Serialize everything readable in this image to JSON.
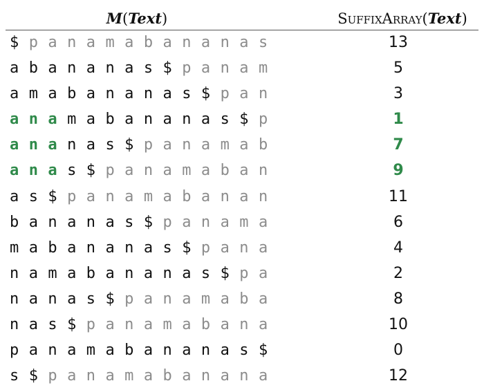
{
  "header": {
    "left_title_italic": "M",
    "left_title_open": "(",
    "left_title_arg": "Text",
    "left_title_close": ")",
    "right_title_name": "SuffixArray",
    "right_title_open": "(",
    "right_title_arg": "Text",
    "right_title_close": ")"
  },
  "colors": {
    "black": "#111111",
    "gray": "#8c8c8c",
    "green": "#2f8a4a"
  },
  "rows": [
    {
      "rotation": "$panamabananas",
      "black_count": 1,
      "green_count": 0,
      "suffix": "13",
      "highlight": false
    },
    {
      "rotation": "abananas$panam",
      "black_count": 9,
      "green_count": 0,
      "suffix": "5",
      "highlight": false
    },
    {
      "rotation": "amabananas$pan",
      "black_count": 11,
      "green_count": 0,
      "suffix": "3",
      "highlight": false
    },
    {
      "rotation": "anamabananas$p",
      "black_count": 13,
      "green_count": 3,
      "suffix": "1",
      "highlight": true
    },
    {
      "rotation": "ananas$panamab",
      "black_count": 7,
      "green_count": 3,
      "suffix": "7",
      "highlight": true
    },
    {
      "rotation": "anas$panamaban",
      "black_count": 5,
      "green_count": 3,
      "suffix": "9",
      "highlight": true
    },
    {
      "rotation": "as$panamabanan",
      "black_count": 3,
      "green_count": 0,
      "suffix": "11",
      "highlight": false
    },
    {
      "rotation": "bananas$panama",
      "black_count": 8,
      "green_count": 0,
      "suffix": "6",
      "highlight": false
    },
    {
      "rotation": "mabananas$pana",
      "black_count": 10,
      "green_count": 0,
      "suffix": "4",
      "highlight": false
    },
    {
      "rotation": "namabananas$pa",
      "black_count": 12,
      "green_count": 0,
      "suffix": "2",
      "highlight": false
    },
    {
      "rotation": "nanas$panamaba",
      "black_count": 6,
      "green_count": 0,
      "suffix": "8",
      "highlight": false
    },
    {
      "rotation": "nas$panamabana",
      "black_count": 4,
      "green_count": 0,
      "suffix": "10",
      "highlight": false
    },
    {
      "rotation": "panamabananas$",
      "black_count": 14,
      "green_count": 0,
      "suffix": "0",
      "highlight": false
    },
    {
      "rotation": "s$panamabanana",
      "black_count": 2,
      "green_count": 0,
      "suffix": "12",
      "highlight": false
    }
  ]
}
